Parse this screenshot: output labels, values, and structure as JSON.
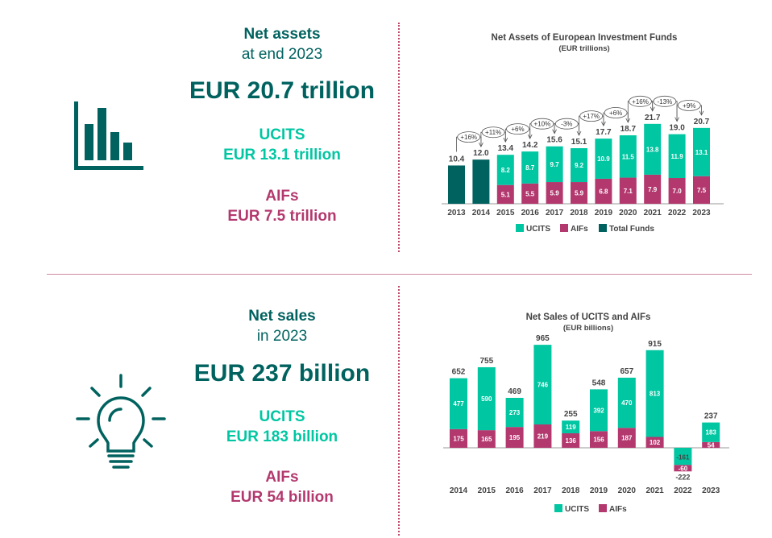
{
  "top": {
    "heading": "Net assets",
    "subheading": "at end 2023",
    "headline": "EUR 20.7 trillion",
    "ucits_label": "UCITS",
    "ucits_value": "EUR 13.1 trillion",
    "aifs_label": "AIFs",
    "aifs_value": "EUR 7.5 trillion",
    "icon": "bar-chart-icon"
  },
  "bottom": {
    "heading": "Net sales",
    "subheading": "in 2023",
    "headline": "EUR 237 billion",
    "ucits_label": "UCITS",
    "ucits_value": "EUR 183 billion",
    "aifs_label": "AIFs",
    "aifs_value": "EUR 54 billion",
    "icon": "lightbulb-icon"
  },
  "colors": {
    "ucits": "#00c6a2",
    "aifs": "#b3386e",
    "total": "#00625f",
    "text": "#444444"
  },
  "chart_data": [
    {
      "type": "bar",
      "title": "Net Assets of European Investment Funds",
      "subtitle": "(EUR trillions)",
      "categories": [
        "2013",
        "2014",
        "2015",
        "2016",
        "2017",
        "2018",
        "2019",
        "2020",
        "2021",
        "2022",
        "2023"
      ],
      "series": [
        {
          "name": "UCITS",
          "values": [
            null,
            null,
            8.2,
            8.7,
            9.7,
            9.2,
            10.9,
            11.5,
            13.8,
            11.9,
            13.1
          ]
        },
        {
          "name": "AIFs",
          "values": [
            null,
            null,
            5.1,
            5.5,
            5.9,
            5.9,
            6.8,
            7.1,
            7.9,
            7.0,
            7.5
          ]
        },
        {
          "name": "Total Funds",
          "values": [
            10.4,
            12.0,
            null,
            null,
            null,
            null,
            null,
            null,
            null,
            null,
            null
          ]
        }
      ],
      "totals": [
        "10.4",
        "12.0",
        "13.4",
        "14.2",
        "15.6",
        "15.1",
        "17.7",
        "18.7",
        "21.7",
        "19.0",
        "20.7"
      ],
      "growth": [
        "+16%",
        "+11%",
        "+6%",
        "+10%",
        "-3%",
        "+17%",
        "+6%",
        "+16%",
        "-13%",
        "+9%"
      ],
      "ylim": [
        0,
        25
      ],
      "legend": "bottom"
    },
    {
      "type": "bar",
      "title": "Net Sales of UCITS and AIFs",
      "subtitle": "(EUR billions)",
      "categories": [
        "2014",
        "2015",
        "2016",
        "2017",
        "2018",
        "2019",
        "2020",
        "2021",
        "2022",
        "2023"
      ],
      "series": [
        {
          "name": "UCITS",
          "values": [
            477,
            590,
            273,
            746,
            119,
            392,
            470,
            813,
            -161,
            183
          ]
        },
        {
          "name": "AIFs",
          "values": [
            175,
            165,
            195,
            219,
            136,
            156,
            187,
            102,
            -60,
            54
          ]
        }
      ],
      "totals": [
        "652",
        "755",
        "469",
        "965",
        "255",
        "548",
        "657",
        "915",
        "-222",
        "237"
      ],
      "ylim": [
        -250,
        1000
      ],
      "legend": "bottom"
    }
  ]
}
